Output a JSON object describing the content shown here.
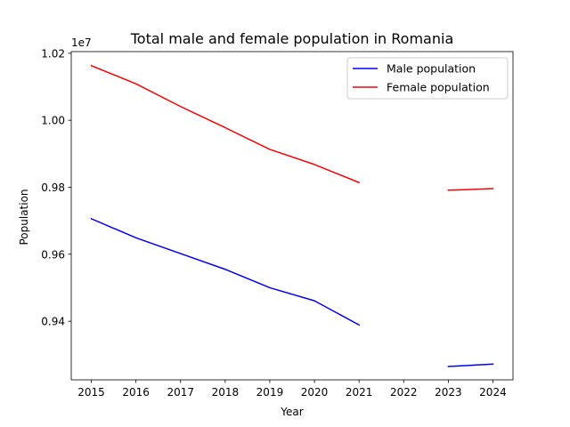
{
  "chart_data": {
    "type": "line",
    "title": "Total male and female population in Romania",
    "xlabel": "Year",
    "ylabel": "Population",
    "y_offset_label": "1e7",
    "x": [
      2015,
      2016,
      2017,
      2018,
      2019,
      2020,
      2021,
      2022,
      2023,
      2024
    ],
    "xlim": [
      2014.55,
      2024.45
    ],
    "ylim": [
      0.9225,
      1.0205
    ],
    "x_ticks": [
      "2015",
      "2016",
      "2017",
      "2018",
      "2019",
      "2020",
      "2021",
      "2022",
      "2023",
      "2024"
    ],
    "y_ticks": [
      0.94,
      0.96,
      0.98,
      1.0,
      1.02
    ],
    "y_tick_labels": [
      "0.94",
      "0.96",
      "0.98",
      "1.00",
      "1.02"
    ],
    "grid": false,
    "legend_position": "top-right",
    "series": [
      {
        "name": "Male population",
        "color": "#0000ff",
        "values": [
          0.9706,
          0.9649,
          0.9602,
          0.9555,
          0.95,
          0.9461,
          0.9389,
          null,
          0.9265,
          0.9272
        ]
      },
      {
        "name": "Female population",
        "color": "#ff0000",
        "values": [
          1.0163,
          1.0109,
          1.0041,
          0.9978,
          0.9913,
          0.9868,
          0.9814,
          null,
          0.9791,
          0.9796
        ]
      }
    ]
  }
}
